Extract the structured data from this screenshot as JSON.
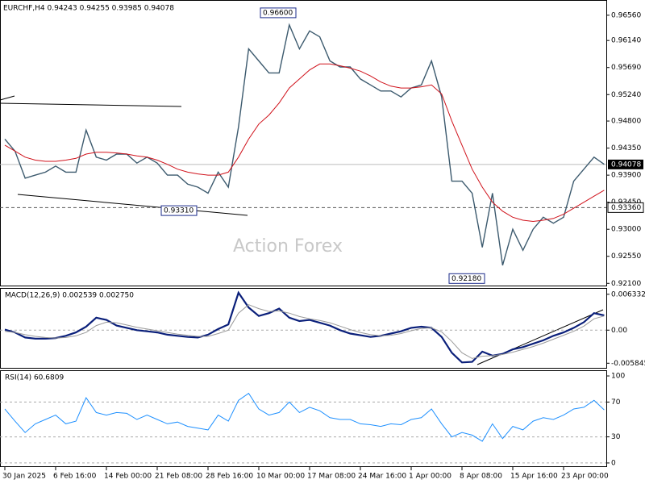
{
  "chart_data": [
    {
      "type": "line",
      "title": "EURCHF,H4 0.94243 0.94255 0.93985 0.94078",
      "watermark": "Action Forex",
      "ylim": [
        0.9205,
        0.968
      ],
      "yticks": [
        {
          "value": 0.9656,
          "label": "0.96560"
        },
        {
          "value": 0.9614,
          "label": "0.96140"
        },
        {
          "value": 0.9569,
          "label": "0.95690"
        },
        {
          "value": 0.9524,
          "label": "0.95240"
        },
        {
          "value": 0.948,
          "label": "0.94800"
        },
        {
          "value": 0.9435,
          "label": "0.94350"
        },
        {
          "value": 0.939,
          "label": "0.93900"
        },
        {
          "value": 0.9345,
          "label": "0.93450"
        },
        {
          "value": 0.93,
          "label": "0.93000"
        },
        {
          "value": 0.9255,
          "label": "0.92550"
        },
        {
          "value": 0.921,
          "label": "0.92100"
        }
      ],
      "price_line": {
        "value": 0.94078,
        "label": "0.94078"
      },
      "level_line": {
        "value": 0.9336,
        "label": "0.93360"
      },
      "annotations": [
        {
          "value": 0.966,
          "label": "0.96600"
        },
        {
          "value": 0.9331,
          "label": "0.93310"
        },
        {
          "value": 0.9218,
          "label": "0.92180"
        }
      ],
      "series": [
        {
          "name": "EURCHF",
          "color": "#3c5a6e",
          "values": [
            0.945,
            0.943,
            0.9385,
            0.939,
            0.9395,
            0.9405,
            0.9395,
            0.9395,
            0.9465,
            0.942,
            0.9415,
            0.9425,
            0.9425,
            0.941,
            0.942,
            0.941,
            0.939,
            0.939,
            0.9375,
            0.937,
            0.936,
            0.9395,
            0.937,
            0.947,
            0.96,
            0.958,
            0.956,
            0.956,
            0.964,
            0.96,
            0.963,
            0.962,
            0.958,
            0.957,
            0.957,
            0.955,
            0.954,
            0.953,
            0.953,
            0.952,
            0.9535,
            0.954,
            0.958,
            0.952,
            0.938,
            0.938,
            0.936,
            0.927,
            0.936,
            0.924,
            0.93,
            0.9265,
            0.93,
            0.932,
            0.931,
            0.932,
            0.938,
            0.94,
            0.942,
            0.9408
          ]
        },
        {
          "name": "MA",
          "color": "#d0121b",
          "values": [
            0.944,
            0.943,
            0.942,
            0.9415,
            0.9413,
            0.9413,
            0.9415,
            0.9418,
            0.9425,
            0.9428,
            0.9428,
            0.9427,
            0.9425,
            0.9422,
            0.942,
            0.9415,
            0.9408,
            0.94,
            0.9395,
            0.9392,
            0.939,
            0.939,
            0.9395,
            0.942,
            0.945,
            0.9475,
            0.949,
            0.951,
            0.9535,
            0.955,
            0.9565,
            0.9575,
            0.9575,
            0.9572,
            0.9568,
            0.9563,
            0.9555,
            0.9545,
            0.9538,
            0.9535,
            0.9535,
            0.9537,
            0.954,
            0.9525,
            0.948,
            0.944,
            0.94,
            0.937,
            0.9345,
            0.933,
            0.932,
            0.9315,
            0.9313,
            0.9315,
            0.9318,
            0.9325,
            0.9335,
            0.9345,
            0.9355,
            0.9365
          ]
        }
      ]
    },
    {
      "type": "line",
      "title": "MACD(12,26,9) 0.002539 0.002750",
      "ylim": [
        -0.0068,
        0.0073
      ],
      "yticks": [
        0.006332,
        {
          "value": 0,
          "label": "0.00"
        },
        -0.005845
      ],
      "series": [
        {
          "name": "MACD",
          "color": "#0a1f7a",
          "values": [
            0.0001,
            -0.0004,
            -0.0013,
            -0.0015,
            -0.0015,
            -0.0014,
            -0.001,
            -0.0004,
            0.0006,
            0.0022,
            0.0018,
            0.0008,
            0.0004,
            0.0,
            -0.0002,
            -0.0004,
            -0.0008,
            -0.001,
            -0.0012,
            -0.0013,
            -0.0008,
            0.0002,
            0.001,
            0.0066,
            0.004,
            0.0025,
            0.003,
            0.0038,
            0.0022,
            0.0016,
            0.0018,
            0.0013,
            0.0008,
            0.0,
            -0.0006,
            -0.0009,
            -0.0012,
            -0.001,
            -0.0006,
            -0.0002,
            0.0004,
            0.0006,
            0.0004,
            -0.0012,
            -0.004,
            -0.0057,
            -0.0056,
            -0.0038,
            -0.0045,
            -0.0042,
            -0.0034,
            -0.003,
            -0.0024,
            -0.0018,
            -0.001,
            -0.0004,
            0.0004,
            0.0014,
            0.003,
            0.0026
          ]
        },
        {
          "name": "Signal",
          "color": "#9a9a9a",
          "values": [
            -0.0002,
            -0.0004,
            -0.0008,
            -0.0011,
            -0.0013,
            -0.0014,
            -0.0013,
            -0.001,
            -0.0004,
            0.0008,
            0.0014,
            0.0013,
            0.0009,
            0.0005,
            0.0002,
            -0.0001,
            -0.0004,
            -0.0007,
            -0.0009,
            -0.0011,
            -0.0011,
            -0.0006,
            0.0,
            0.003,
            0.0045,
            0.0038,
            0.0033,
            0.0034,
            0.003,
            0.0024,
            0.002,
            0.0017,
            0.0013,
            0.0007,
            0.0001,
            -0.0004,
            -0.0008,
            -0.001,
            -0.0009,
            -0.0006,
            -0.0001,
            0.0003,
            0.0004,
            -0.0003,
            -0.002,
            -0.004,
            -0.005,
            -0.0046,
            -0.0045,
            -0.0043,
            -0.0039,
            -0.0034,
            -0.0029,
            -0.0023,
            -0.0016,
            -0.0009,
            -0.0002,
            0.0007,
            0.002,
            0.0025
          ]
        }
      ]
    },
    {
      "type": "line",
      "title": "RSI(14) 60.6809",
      "ylim": [
        -4.7,
        105.6
      ],
      "yticks": [
        100,
        70,
        30,
        0
      ],
      "categories": [
        "30 Jan 2025",
        null,
        null,
        null,
        null,
        "6 Feb 16:00",
        null,
        null,
        null,
        null,
        "14 Feb 00:00",
        null,
        null,
        null,
        null,
        "21 Feb 08:00",
        null,
        null,
        null,
        null,
        "28 Feb 16:00",
        null,
        null,
        null,
        null,
        "10 Mar 00:00",
        null,
        null,
        null,
        null,
        "17 Mar 08:00",
        null,
        null,
        null,
        null,
        "24 Mar 16:00",
        null,
        null,
        null,
        null,
        "1 Apr 00:00",
        null,
        null,
        null,
        null,
        "8 Apr 08:00",
        null,
        null,
        null,
        null,
        "15 Apr 16:00",
        null,
        null,
        null,
        null,
        "23 Apr 00:00",
        null,
        null,
        null,
        null
      ],
      "series": [
        {
          "name": "RSI",
          "color": "#1e90ff",
          "values": [
            62,
            48,
            35,
            45,
            50,
            55,
            45,
            48,
            75,
            58,
            55,
            58,
            57,
            50,
            55,
            50,
            45,
            47,
            42,
            40,
            38,
            55,
            48,
            72,
            80,
            62,
            55,
            58,
            70,
            58,
            64,
            60,
            52,
            50,
            50,
            45,
            44,
            42,
            45,
            44,
            50,
            52,
            62,
            45,
            30,
            35,
            32,
            25,
            45,
            28,
            42,
            38,
            48,
            52,
            50,
            55,
            62,
            64,
            72,
            61
          ]
        }
      ]
    }
  ]
}
